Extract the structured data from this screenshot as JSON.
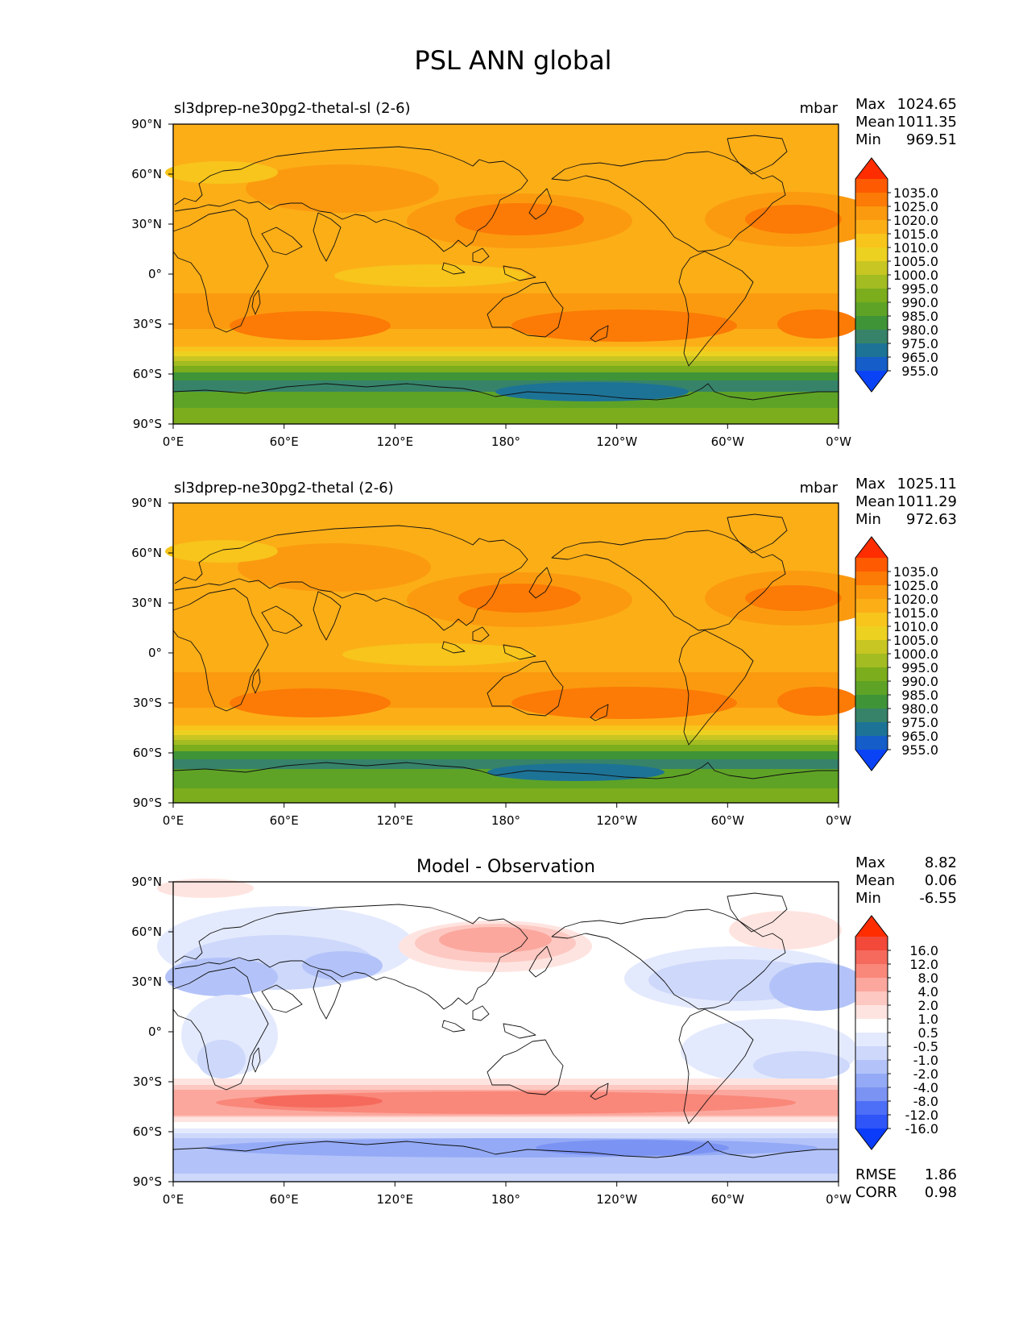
{
  "title": "PSL ANN global",
  "panels": [
    {
      "id": "test",
      "left_title": "sl3dprep-ne30pg2-thetal-sl (2-6)",
      "center_title": "",
      "units": "mbar",
      "stats": [
        {
          "label": "Max",
          "value": "1024.65"
        },
        {
          "label": "Mean",
          "value": "1011.35"
        },
        {
          "label": "Min",
          "value": "969.51"
        }
      ],
      "colorbar_labels": [
        "1035.0",
        "1025.0",
        "1020.0",
        "1015.0",
        "1010.0",
        "1005.0",
        "1000.0",
        "995.0",
        "990.0",
        "985.0",
        "980.0",
        "975.0",
        "965.0",
        "955.0"
      ],
      "colorbar_colors": [
        "#ff2d00",
        "#fe5a02",
        "#fc7a06",
        "#fb9a0f",
        "#fcae17",
        "#f7c51b",
        "#ecd121",
        "#c8c623",
        "#a2bc22",
        "#7bad1c",
        "#5ea326",
        "#3f9437",
        "#36836a",
        "#1d7396",
        "#155dc8",
        "#0a43f5"
      ],
      "extra_stats": []
    },
    {
      "id": "reference",
      "left_title": "sl3dprep-ne30pg2-thetal (2-6)",
      "center_title": "",
      "units": "mbar",
      "stats": [
        {
          "label": "Max",
          "value": "1025.11"
        },
        {
          "label": "Mean",
          "value": "1011.29"
        },
        {
          "label": "Min",
          "value": "972.63"
        }
      ],
      "colorbar_labels": [
        "1035.0",
        "1025.0",
        "1020.0",
        "1015.0",
        "1010.0",
        "1005.0",
        "1000.0",
        "995.0",
        "990.0",
        "985.0",
        "980.0",
        "975.0",
        "965.0",
        "955.0"
      ],
      "colorbar_colors": [
        "#ff2d00",
        "#fe5a02",
        "#fc7a06",
        "#fb9a0f",
        "#fcae17",
        "#f7c51b",
        "#ecd121",
        "#c8c623",
        "#a2bc22",
        "#7bad1c",
        "#5ea326",
        "#3f9437",
        "#36836a",
        "#1d7396",
        "#155dc8",
        "#0a43f5"
      ],
      "extra_stats": []
    },
    {
      "id": "difference",
      "left_title": "",
      "center_title": "Model - Observation",
      "units": "",
      "stats": [
        {
          "label": "Max",
          "value": "8.82"
        },
        {
          "label": "Mean",
          "value": "0.06"
        },
        {
          "label": "Min",
          "value": "-6.55"
        }
      ],
      "colorbar_labels": [
        "16.0",
        "12.0",
        "8.0",
        "4.0",
        "2.0",
        "1.0",
        "0.5",
        "-0.5",
        "-1.0",
        "-2.0",
        "-4.0",
        "-8.0",
        "-12.0",
        "-16.0"
      ],
      "colorbar_colors": [
        "#ff2d00",
        "#f2493a",
        "#f56a5c",
        "#f9877a",
        "#fba79d",
        "#fdc8c1",
        "#fee4e0",
        "#ffffff",
        "#e4eafd",
        "#cdd8fb",
        "#b3c3f9",
        "#94aaf6",
        "#7b93f3",
        "#4d6ef6",
        "#2f55f8",
        "#0a3cf9"
      ],
      "extra_stats": [
        {
          "label": "RMSE",
          "value": "1.86"
        },
        {
          "label": "CORR",
          "value": "0.98"
        }
      ]
    }
  ],
  "axes": {
    "lat_ticks": [
      "90°N",
      "60°N",
      "30°N",
      "0°",
      "30°S",
      "60°S",
      "90°S"
    ],
    "lon_ticks": [
      "0°E",
      "60°E",
      "120°E",
      "180°",
      "120°W",
      "60°W",
      "0°W"
    ]
  }
}
